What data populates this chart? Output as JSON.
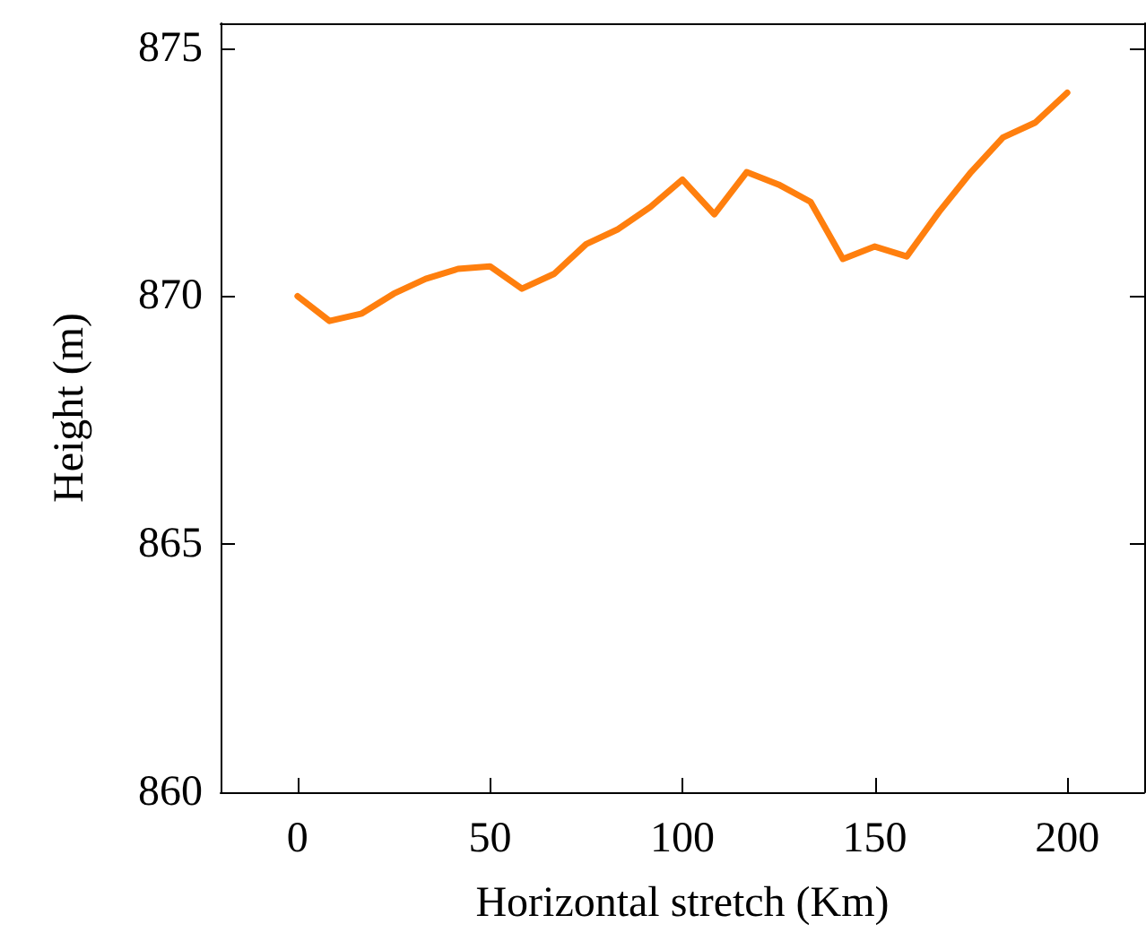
{
  "chart_data": {
    "type": "line",
    "xlabel": "Horizontal stretch (Km)",
    "ylabel": "Height (m)",
    "xlim": [
      -20,
      220
    ],
    "xticks": [
      0,
      50,
      100,
      150,
      200
    ],
    "ylim": [
      860,
      875.5
    ],
    "yticks": [
      860,
      865,
      870,
      875
    ],
    "grid": false,
    "marker": "none",
    "line_style": "solid",
    "series": [
      {
        "color": "#ff7f0e",
        "x": [
          0,
          8.3,
          16.7,
          25,
          33.3,
          41.7,
          50,
          58.3,
          66.7,
          75,
          83.3,
          91.7,
          100,
          108.3,
          116.7,
          125,
          133.3,
          141.7,
          150,
          158.3,
          166.7,
          175,
          183.3,
          191.7,
          200
        ],
        "values": [
          870.0,
          869.5,
          869.65,
          870.05,
          870.35,
          870.55,
          870.6,
          870.15,
          870.45,
          871.05,
          871.35,
          871.8,
          872.35,
          871.65,
          872.5,
          872.25,
          871.9,
          870.75,
          871.0,
          870.8,
          871.7,
          872.5,
          873.2,
          873.5,
          874.1
        ]
      }
    ]
  }
}
